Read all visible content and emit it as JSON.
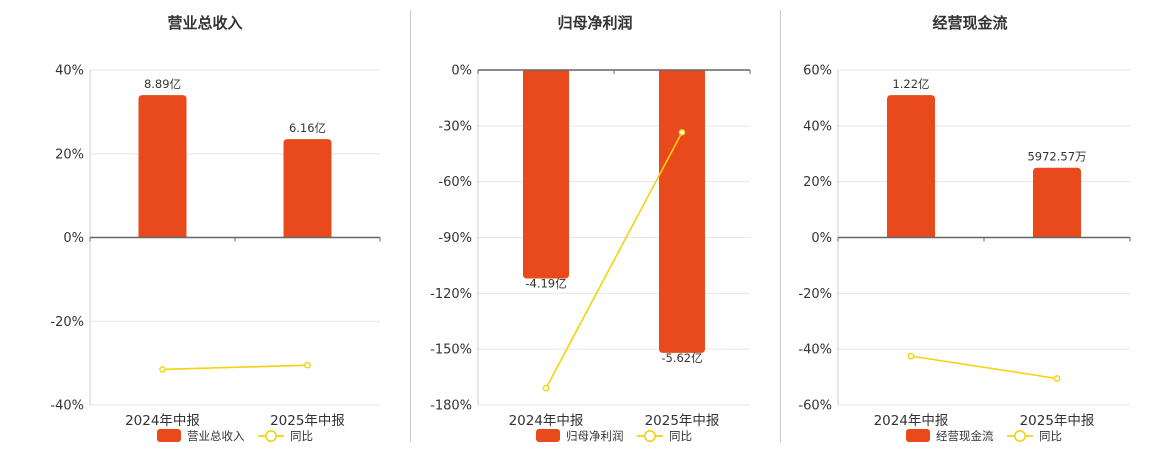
{
  "chart_data": [
    {
      "type": "bar",
      "title": "营业总收入",
      "categories": [
        "2024年中报",
        "2025年中报"
      ],
      "series": [
        {
          "name": "营业总收入",
          "kind": "bar",
          "values": [
            34,
            23.5
          ],
          "labels": [
            "8.89亿",
            "6.16亿"
          ]
        },
        {
          "name": "同比",
          "kind": "line",
          "values": [
            -31.5,
            -30.5
          ]
        }
      ],
      "yticks": [
        "40%",
        "20%",
        "0%",
        "-20%",
        "-40%"
      ],
      "ylim": [
        -40,
        40
      ],
      "grid": true,
      "legend_position": "bottom",
      "colors": {
        "bar": "#e84a1b",
        "line": "#f5d20f"
      }
    },
    {
      "type": "bar",
      "title": "归母净利润",
      "categories": [
        "2024年中报",
        "2025年中报"
      ],
      "series": [
        {
          "name": "归母净利润",
          "kind": "bar",
          "values": [
            -112,
            -152
          ],
          "labels": [
            "-4.19亿",
            "-5.62亿"
          ]
        },
        {
          "name": "同比",
          "kind": "line",
          "values": [
            -171,
            -33.5
          ]
        }
      ],
      "yticks": [
        "0%",
        "-30%",
        "-60%",
        "-90%",
        "-120%",
        "-150%",
        "-180%"
      ],
      "ylim": [
        -180,
        0
      ],
      "grid": true,
      "legend_position": "bottom",
      "colors": {
        "bar": "#e84a1b",
        "line": "#f5d20f"
      }
    },
    {
      "type": "bar",
      "title": "经营现金流",
      "categories": [
        "2024年中报",
        "2025年中报"
      ],
      "series": [
        {
          "name": "经营现金流",
          "kind": "bar",
          "values": [
            51,
            25
          ],
          "labels": [
            "1.22亿",
            "5972.57万"
          ]
        },
        {
          "name": "同比",
          "kind": "line",
          "values": [
            -42.5,
            -50.5
          ]
        }
      ],
      "yticks": [
        "60%",
        "40%",
        "20%",
        "0%",
        "-20%",
        "-40%",
        "-60%"
      ],
      "ylim": [
        -60,
        60
      ],
      "grid": true,
      "legend_position": "bottom",
      "colors": {
        "bar": "#e84a1b",
        "line": "#f5d20f"
      }
    }
  ]
}
